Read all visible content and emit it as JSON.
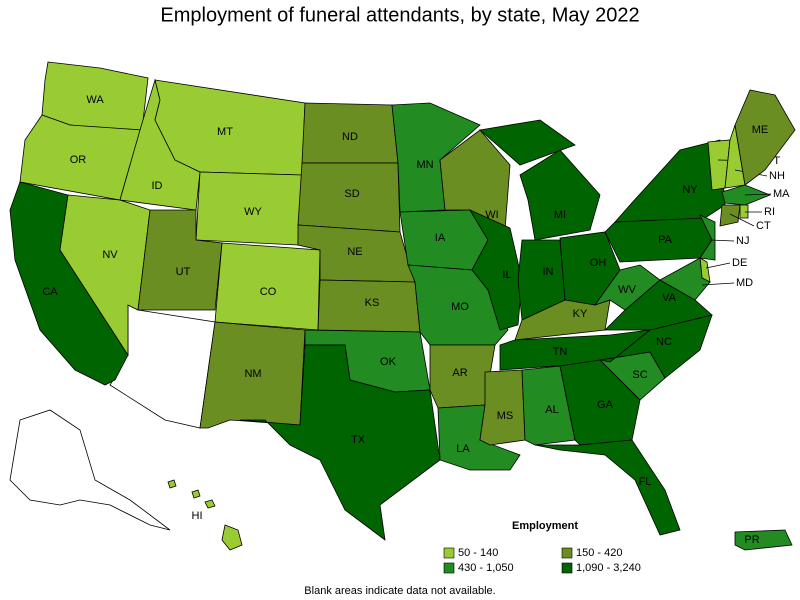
{
  "title": "Employment of funeral attendants, by state, May 2022",
  "states": [
    {
      "label": "WA",
      "color": "#99cc33"
    },
    {
      "label": "OR",
      "color": "#99cc33"
    },
    {
      "label": "CA",
      "color": "#006400"
    },
    {
      "label": "NV",
      "color": "#99cc33"
    },
    {
      "label": "ID",
      "color": "#99cc33"
    },
    {
      "label": "MT",
      "color": "#99cc33"
    },
    {
      "label": "WY",
      "color": "#99cc33"
    },
    {
      "label": "UT",
      "color": "#6b8e23"
    },
    {
      "label": "CO",
      "color": "#99cc33"
    },
    {
      "label": "NM",
      "color": "#6b8e23"
    },
    {
      "label": "ND",
      "color": "#6b8e23"
    },
    {
      "label": "SD",
      "color": "#6b8e23"
    },
    {
      "label": "NE",
      "color": "#6b8e23"
    },
    {
      "label": "KS",
      "color": "#6b8e23"
    },
    {
      "label": "OK",
      "color": "#228b22"
    },
    {
      "label": "TX",
      "color": "#006400"
    },
    {
      "label": "MN",
      "color": "#228b22"
    },
    {
      "label": "IA",
      "color": "#228b22"
    },
    {
      "label": "MO",
      "color": "#228b22"
    },
    {
      "label": "AR",
      "color": "#6b8e23"
    },
    {
      "label": "LA",
      "color": "#228b22"
    },
    {
      "label": "WI",
      "color": "#6b8e23"
    },
    {
      "label": "IL",
      "color": "#006400"
    },
    {
      "label": "MI",
      "color": "#006400"
    },
    {
      "label": "IN",
      "color": "#006400"
    },
    {
      "label": "OH",
      "color": "#006400"
    },
    {
      "label": "KY",
      "color": "#6b8e23"
    },
    {
      "label": "TN",
      "color": "#006400"
    },
    {
      "label": "MS",
      "color": "#6b8e23"
    },
    {
      "label": "AL",
      "color": "#228b22"
    },
    {
      "label": "GA",
      "color": "#006400"
    },
    {
      "label": "FL",
      "color": "#006400"
    },
    {
      "label": "SC",
      "color": "#228b22"
    },
    {
      "label": "NC",
      "color": "#006400"
    },
    {
      "label": "VA",
      "color": "#006400"
    },
    {
      "label": "WV",
      "color": "#228b22"
    },
    {
      "label": "PA",
      "color": "#006400"
    },
    {
      "label": "NY",
      "color": "#006400"
    },
    {
      "label": "VT",
      "color": "#99cc33"
    },
    {
      "label": "NH",
      "color": "#99cc33"
    },
    {
      "label": "ME",
      "color": "#6b8e23"
    },
    {
      "label": "MA",
      "color": "#228b22"
    },
    {
      "label": "CT",
      "color": "#6b8e23"
    },
    {
      "label": "RI",
      "color": "#99cc33"
    },
    {
      "label": "NJ",
      "color": "#228b22"
    },
    {
      "label": "DE",
      "color": "#99cc33"
    },
    {
      "label": "MD",
      "color": "#228b22"
    },
    {
      "label": "HI",
      "color": "#99cc33"
    },
    {
      "label": "PR",
      "color": "#228b22"
    }
  ],
  "legend": {
    "title": "Employment",
    "items": [
      {
        "label": "50 - 140",
        "color": "#99cc33"
      },
      {
        "label": "150 - 420",
        "color": "#6b8e23"
      },
      {
        "label": "430 - 1,050",
        "color": "#228b22"
      },
      {
        "label": "1,090 - 3,240",
        "color": "#006400"
      }
    ]
  },
  "note": "Blank areas indicate data not available."
}
